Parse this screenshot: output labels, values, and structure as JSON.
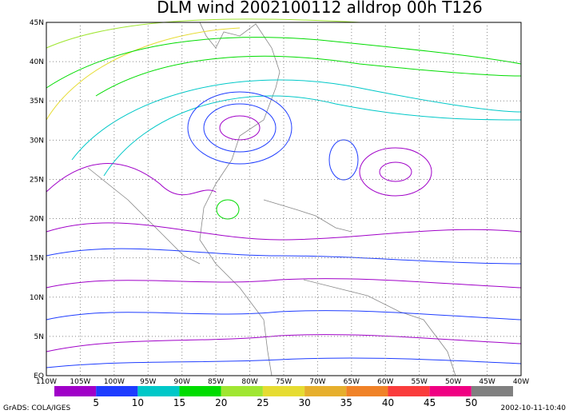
{
  "title": "DLM wind 2002100112 alldrop 00h T126",
  "lon_labels": [
    "110W",
    "105W",
    "100W",
    "95W",
    "90W",
    "85W",
    "80W",
    "75W",
    "70W",
    "65W",
    "60W",
    "55W",
    "50W",
    "45W",
    "40W"
  ],
  "lat_labels": [
    "EQ",
    "5N",
    "10N",
    "15N",
    "20N",
    "25N",
    "30N",
    "35N",
    "40N",
    "45N"
  ],
  "colorbar": {
    "colors": [
      "#a000c8",
      "#1e3cff",
      "#00c8c8",
      "#00dc00",
      "#a0e632",
      "#e6dc32",
      "#e6af2d",
      "#f08228",
      "#fa3c3c",
      "#f00082",
      "#808080"
    ],
    "labels": [
      "5",
      "10",
      "15",
      "20",
      "25",
      "30",
      "35",
      "40",
      "45",
      "50"
    ]
  },
  "footer_left": "GrADS: COLA/IGES",
  "footer_right": "2002-10-11-10:40"
}
